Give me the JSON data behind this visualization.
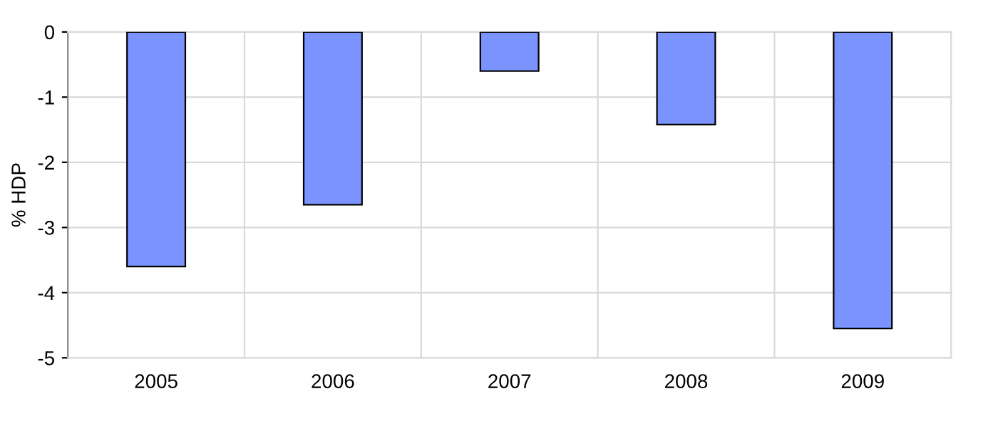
{
  "chart_data": {
    "type": "bar",
    "ylabel": "% HDP",
    "categories": [
      "2005",
      "2006",
      "2007",
      "2008",
      "2009"
    ],
    "values": [
      -3.6,
      -2.65,
      -0.6,
      -1.42,
      -4.55
    ],
    "color": "#7b93ff",
    "ylim": [
      -5,
      0
    ],
    "yticks": [
      -5,
      -4,
      -3,
      -2,
      -1,
      0
    ],
    "grid": true
  }
}
